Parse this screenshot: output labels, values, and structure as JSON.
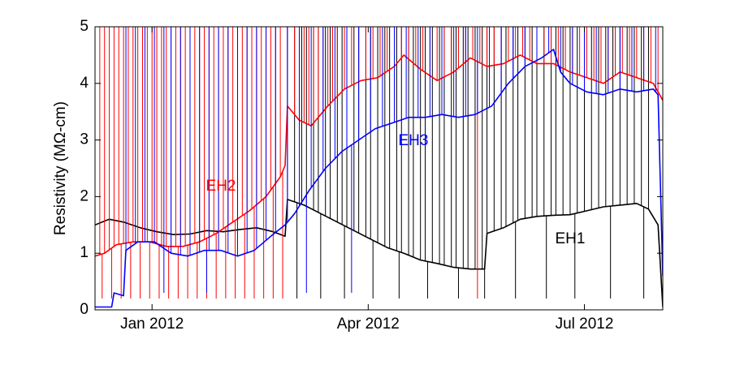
{
  "chart_data": {
    "type": "line",
    "title": "",
    "xlabel": "",
    "ylabel": "Resistivity (MΩ-cm)",
    "xlim": [
      "2011-12-08",
      "2012-08-03"
    ],
    "ylim": [
      0,
      5
    ],
    "yticks": [
      0,
      1,
      2,
      3,
      4,
      5
    ],
    "xticks": [
      {
        "date": "2012-01-01",
        "label": "Jan 2012"
      },
      {
        "date": "2012-04-01",
        "label": "Apr 2012"
      },
      {
        "date": "2012-07-01",
        "label": "Jul 2012"
      }
    ],
    "grid": false,
    "legend": "none",
    "series": [
      {
        "name": "EH1",
        "color": "#000000",
        "label_date": "2012-06-25",
        "label_value": 1.25,
        "spike_value": 5,
        "spike_dates": [
          "2012-02-27",
          "2012-03-01",
          "2012-03-04",
          "2012-03-06",
          "2012-03-09",
          "2012-03-11",
          "2012-03-14",
          "2012-03-16",
          "2012-03-19",
          "2012-03-21",
          "2012-03-23",
          "2012-03-26",
          "2012-03-28",
          "2012-03-31",
          "2012-04-02",
          "2012-04-05",
          "2012-04-08",
          "2012-04-10",
          "2012-04-13",
          "2012-04-15",
          "2012-04-18",
          "2012-04-20",
          "2012-04-23",
          "2012-04-25",
          "2012-04-28",
          "2012-05-01",
          "2012-05-03",
          "2012-05-06",
          "2012-05-08",
          "2012-05-11",
          "2012-05-13",
          "2012-05-16",
          "2012-05-19",
          "2012-05-21",
          "2012-05-24",
          "2012-05-27",
          "2012-05-29",
          "2012-06-01",
          "2012-06-03",
          "2012-06-06",
          "2012-06-09",
          "2012-06-11",
          "2012-06-14",
          "2012-06-17",
          "2012-06-19",
          "2012-06-22",
          "2012-06-25",
          "2012-06-28",
          "2012-07-01",
          "2012-07-04",
          "2012-07-07",
          "2012-07-10",
          "2012-07-13",
          "2012-07-16",
          "2012-07-19",
          "2012-07-22",
          "2012-07-25",
          "2012-07-28"
        ],
        "dip_dates": [
          "2012-03-02",
          "2012-03-12",
          "2012-03-22",
          "2012-04-03",
          "2012-04-14",
          "2012-04-26",
          "2012-05-09",
          "2012-05-20",
          "2012-06-02",
          "2012-06-15",
          "2012-06-27",
          "2012-07-12",
          "2012-07-26"
        ],
        "dip_value": 0.2,
        "points": [
          [
            "2011-12-08",
            1.5
          ],
          [
            "2011-12-14",
            1.6
          ],
          [
            "2011-12-20",
            1.55
          ],
          [
            "2011-12-27",
            1.45
          ],
          [
            "2012-01-03",
            1.38
          ],
          [
            "2012-01-10",
            1.33
          ],
          [
            "2012-01-17",
            1.34
          ],
          [
            "2012-01-24",
            1.4
          ],
          [
            "2012-01-31",
            1.38
          ],
          [
            "2012-02-07",
            1.42
          ],
          [
            "2012-02-14",
            1.45
          ],
          [
            "2012-02-21",
            1.38
          ],
          [
            "2012-02-26",
            1.3
          ],
          [
            "2012-02-27",
            1.95
          ],
          [
            "2012-03-05",
            1.85
          ],
          [
            "2012-03-12",
            1.7
          ],
          [
            "2012-03-19",
            1.55
          ],
          [
            "2012-03-26",
            1.4
          ],
          [
            "2012-04-02",
            1.25
          ],
          [
            "2012-04-09",
            1.1
          ],
          [
            "2012-04-16",
            1.0
          ],
          [
            "2012-04-23",
            0.88
          ],
          [
            "2012-04-30",
            0.82
          ],
          [
            "2012-05-07",
            0.75
          ],
          [
            "2012-05-14",
            0.72
          ],
          [
            "2012-05-20",
            0.72
          ],
          [
            "2012-05-21",
            1.35
          ],
          [
            "2012-05-28",
            1.45
          ],
          [
            "2012-06-04",
            1.6
          ],
          [
            "2012-06-11",
            1.65
          ],
          [
            "2012-06-18",
            1.67
          ],
          [
            "2012-06-25",
            1.68
          ],
          [
            "2012-07-02",
            1.75
          ],
          [
            "2012-07-09",
            1.82
          ],
          [
            "2012-07-16",
            1.85
          ],
          [
            "2012-07-23",
            1.88
          ],
          [
            "2012-07-28",
            1.78
          ],
          [
            "2012-08-01",
            1.5
          ],
          [
            "2012-08-03",
            0.05
          ]
        ]
      },
      {
        "name": "EH2",
        "color": "#ff0000",
        "label_date": "2012-01-30",
        "label_value": 2.18,
        "spike_value": 5,
        "spike_dates": [
          "2011-12-10",
          "2011-12-12",
          "2011-12-14",
          "2011-12-16",
          "2011-12-18",
          "2011-12-20",
          "2011-12-22",
          "2011-12-24",
          "2011-12-26",
          "2011-12-28",
          "2011-12-30",
          "2012-01-01",
          "2012-01-03",
          "2012-01-05",
          "2012-01-07",
          "2012-01-09",
          "2012-01-11",
          "2012-01-13",
          "2012-01-15",
          "2012-01-17",
          "2012-01-19",
          "2012-01-21",
          "2012-01-23",
          "2012-01-25",
          "2012-01-27",
          "2012-01-29",
          "2012-01-31",
          "2012-02-02",
          "2012-02-04",
          "2012-02-06",
          "2012-02-08",
          "2012-02-10",
          "2012-02-12",
          "2012-02-14",
          "2012-02-16",
          "2012-02-18",
          "2012-02-20",
          "2012-02-22",
          "2012-02-24",
          "2012-02-27",
          "2012-03-01",
          "2012-03-03",
          "2012-03-05",
          "2012-03-07",
          "2012-03-09",
          "2012-03-11",
          "2012-03-13",
          "2012-03-15",
          "2012-03-17",
          "2012-03-19",
          "2012-03-22",
          "2012-03-25",
          "2012-03-28",
          "2012-03-31",
          "2012-04-03",
          "2012-04-06",
          "2012-04-09",
          "2012-04-12",
          "2012-04-15",
          "2012-04-18",
          "2012-04-21",
          "2012-04-24",
          "2012-04-27",
          "2012-04-30",
          "2012-05-03",
          "2012-05-06",
          "2012-05-09",
          "2012-05-12",
          "2012-05-15",
          "2012-05-18",
          "2012-05-21",
          "2012-05-24",
          "2012-05-27",
          "2012-05-30",
          "2012-06-02",
          "2012-06-05",
          "2012-06-08",
          "2012-06-11",
          "2012-06-14",
          "2012-06-17",
          "2012-06-20",
          "2012-06-23",
          "2012-06-26",
          "2012-06-29",
          "2012-07-02",
          "2012-07-05",
          "2012-07-08",
          "2012-07-11",
          "2012-07-14",
          "2012-07-17",
          "2012-07-20",
          "2012-07-23",
          "2012-07-26",
          "2012-07-29",
          "2012-08-01"
        ],
        "dip_dates": [
          "2011-12-11",
          "2011-12-15",
          "2011-12-19",
          "2011-12-23",
          "2011-12-27",
          "2011-12-31",
          "2012-01-04",
          "2012-01-08",
          "2012-01-12",
          "2012-01-16",
          "2012-01-20",
          "2012-01-24",
          "2012-01-28",
          "2012-02-01",
          "2012-02-05",
          "2012-02-09",
          "2012-02-13",
          "2012-02-17",
          "2012-02-21",
          "2012-02-25",
          "2012-05-17",
          "2012-08-03"
        ],
        "dip_value": 0.2,
        "points": [
          [
            "2011-12-08",
            0.95
          ],
          [
            "2011-12-12",
            1.0
          ],
          [
            "2011-12-17",
            1.15
          ],
          [
            "2011-12-24",
            1.2
          ],
          [
            "2011-12-31",
            1.2
          ],
          [
            "2012-01-07",
            1.12
          ],
          [
            "2012-01-14",
            1.12
          ],
          [
            "2012-01-21",
            1.2
          ],
          [
            "2012-01-28",
            1.35
          ],
          [
            "2012-02-04",
            1.55
          ],
          [
            "2012-02-11",
            1.75
          ],
          [
            "2012-02-18",
            2.0
          ],
          [
            "2012-02-24",
            2.35
          ],
          [
            "2012-02-26",
            2.55
          ],
          [
            "2012-02-27",
            3.6
          ],
          [
            "2012-03-03",
            3.35
          ],
          [
            "2012-03-08",
            3.25
          ],
          [
            "2012-03-15",
            3.6
          ],
          [
            "2012-03-22",
            3.9
          ],
          [
            "2012-03-29",
            4.05
          ],
          [
            "2012-04-05",
            4.1
          ],
          [
            "2012-04-12",
            4.3
          ],
          [
            "2012-04-16",
            4.5
          ],
          [
            "2012-04-23",
            4.25
          ],
          [
            "2012-04-30",
            4.05
          ],
          [
            "2012-05-07",
            4.2
          ],
          [
            "2012-05-14",
            4.45
          ],
          [
            "2012-05-21",
            4.3
          ],
          [
            "2012-05-28",
            4.35
          ],
          [
            "2012-06-04",
            4.5
          ],
          [
            "2012-06-11",
            4.35
          ],
          [
            "2012-06-18",
            4.35
          ],
          [
            "2012-06-25",
            4.2
          ],
          [
            "2012-07-02",
            4.1
          ],
          [
            "2012-07-09",
            4.0
          ],
          [
            "2012-07-16",
            4.2
          ],
          [
            "2012-07-23",
            4.1
          ],
          [
            "2012-07-30",
            4.0
          ],
          [
            "2012-08-03",
            3.7
          ]
        ]
      },
      {
        "name": "EH3",
        "color": "#0000ff",
        "label_date": "2012-04-20",
        "label_value": 2.98,
        "spike_value": 5,
        "spike_dates": [
          "2011-12-21",
          "2011-12-25",
          "2011-12-29",
          "2012-01-02",
          "2012-01-06",
          "2012-01-09",
          "2012-01-13",
          "2012-01-17",
          "2012-01-21",
          "2012-01-25",
          "2012-01-29",
          "2012-02-02",
          "2012-02-06",
          "2012-02-10",
          "2012-02-14",
          "2012-02-18",
          "2012-02-22",
          "2012-02-27",
          "2012-03-03",
          "2012-03-08",
          "2012-03-13",
          "2012-03-18",
          "2012-03-23",
          "2012-03-28",
          "2012-04-02",
          "2012-04-07",
          "2012-04-12",
          "2012-04-17",
          "2012-04-22",
          "2012-04-27",
          "2012-05-02",
          "2012-05-07",
          "2012-05-12",
          "2012-05-17",
          "2012-05-22",
          "2012-05-27",
          "2012-06-01",
          "2012-06-06",
          "2012-06-11",
          "2012-06-16",
          "2012-06-21",
          "2012-06-26",
          "2012-07-01",
          "2012-07-06",
          "2012-07-11",
          "2012-07-16",
          "2012-07-21",
          "2012-07-26",
          "2012-07-31"
        ],
        "dip_dates": [
          "2012-01-06",
          "2012-01-24",
          "2012-03-06",
          "2012-03-25"
        ],
        "dip_value": 0.3,
        "points": [
          [
            "2011-12-08",
            0.05
          ],
          [
            "2011-12-15",
            0.05
          ],
          [
            "2011-12-16",
            0.3
          ],
          [
            "2011-12-20",
            0.25
          ],
          [
            "2011-12-21",
            1.05
          ],
          [
            "2011-12-26",
            1.2
          ],
          [
            "2012-01-02",
            1.2
          ],
          [
            "2012-01-09",
            1.0
          ],
          [
            "2012-01-16",
            0.95
          ],
          [
            "2012-01-23",
            1.05
          ],
          [
            "2012-01-30",
            1.05
          ],
          [
            "2012-02-06",
            0.95
          ],
          [
            "2012-02-13",
            1.05
          ],
          [
            "2012-02-20",
            1.3
          ],
          [
            "2012-02-26",
            1.5
          ],
          [
            "2012-03-01",
            1.7
          ],
          [
            "2012-03-07",
            2.1
          ],
          [
            "2012-03-14",
            2.5
          ],
          [
            "2012-03-21",
            2.8
          ],
          [
            "2012-03-28",
            3.0
          ],
          [
            "2012-04-04",
            3.2
          ],
          [
            "2012-04-11",
            3.3
          ],
          [
            "2012-04-18",
            3.4
          ],
          [
            "2012-04-25",
            3.4
          ],
          [
            "2012-05-02",
            3.45
          ],
          [
            "2012-05-09",
            3.4
          ],
          [
            "2012-05-16",
            3.45
          ],
          [
            "2012-05-23",
            3.6
          ],
          [
            "2012-05-30",
            4.0
          ],
          [
            "2012-06-06",
            4.3
          ],
          [
            "2012-06-13",
            4.45
          ],
          [
            "2012-06-18",
            4.6
          ],
          [
            "2012-06-21",
            4.2
          ],
          [
            "2012-06-25",
            4.0
          ],
          [
            "2012-07-02",
            3.85
          ],
          [
            "2012-07-09",
            3.8
          ],
          [
            "2012-07-16",
            3.9
          ],
          [
            "2012-07-23",
            3.85
          ],
          [
            "2012-07-30",
            3.9
          ],
          [
            "2012-08-01",
            3.8
          ],
          [
            "2012-08-03",
            0.6
          ]
        ]
      }
    ]
  }
}
